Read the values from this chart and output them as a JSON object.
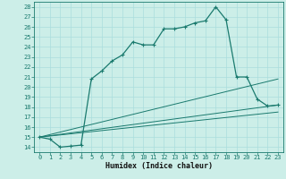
{
  "xlabel": "Humidex (Indice chaleur)",
  "bg_color": "#cceee8",
  "line_color": "#1a7a6e",
  "grid_color": "#aadddd",
  "xlim": [
    -0.5,
    23.5
  ],
  "ylim": [
    13.5,
    28.5
  ],
  "xticks": [
    0,
    1,
    2,
    3,
    4,
    5,
    6,
    7,
    8,
    9,
    10,
    11,
    12,
    13,
    14,
    15,
    16,
    17,
    18,
    19,
    20,
    21,
    22,
    23
  ],
  "yticks": [
    14,
    15,
    16,
    17,
    18,
    19,
    20,
    21,
    22,
    23,
    24,
    25,
    26,
    27,
    28
  ],
  "line1_x": [
    0,
    1,
    2,
    3,
    4,
    5,
    6,
    7,
    8,
    9,
    10,
    11,
    12,
    13,
    14,
    15,
    16,
    17,
    18,
    19,
    20,
    21,
    22,
    23
  ],
  "line1_y": [
    15.0,
    14.8,
    14.0,
    14.1,
    14.2,
    20.8,
    21.6,
    22.6,
    23.2,
    24.5,
    24.2,
    24.2,
    25.8,
    25.8,
    26.0,
    26.4,
    26.6,
    28.0,
    26.7,
    21.0,
    21.0,
    18.8,
    18.1,
    18.2
  ],
  "fan_lines": [
    {
      "x": [
        0,
        23
      ],
      "y": [
        15.0,
        18.2
      ]
    },
    {
      "x": [
        0,
        23
      ],
      "y": [
        15.0,
        20.8
      ]
    },
    {
      "x": [
        0,
        23
      ],
      "y": [
        15.0,
        17.5
      ]
    }
  ],
  "xlabel_fontsize": 6,
  "tick_fontsize": 5
}
